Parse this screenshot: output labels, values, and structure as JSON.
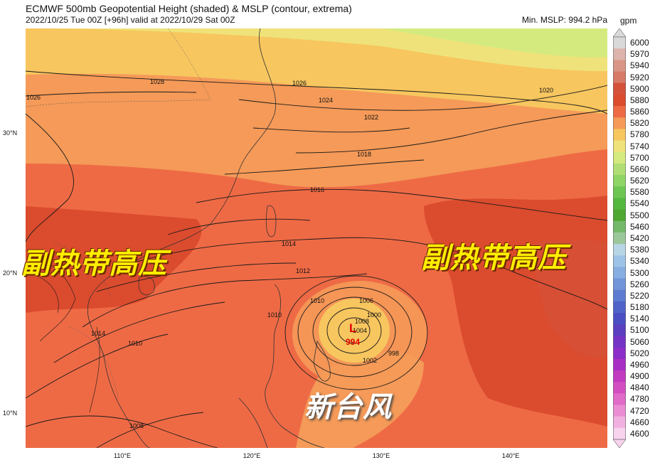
{
  "header": {
    "title": "ECMWF 500mb Geopotential Height (shaded) & MSLP (contour, extrema)",
    "subtitle": "2022/10/25 Tue 00Z [+96h] valid at 2022/10/29 Sat 00Z",
    "min_mslp": "Min. MSLP: 994.2 hPa"
  },
  "axes": {
    "lat_labels": [
      "30°N",
      "20°N",
      "10°N"
    ],
    "lon_labels": [
      "110°E",
      "120°E",
      "130°E",
      "140°E"
    ]
  },
  "colorbar": {
    "unit": "gpm",
    "levels": [
      "6000",
      "5970",
      "5940",
      "5920",
      "5900",
      "5880",
      "5860",
      "5820",
      "5780",
      "5740",
      "5700",
      "5660",
      "5620",
      "5580",
      "5540",
      "5500",
      "5460",
      "5420",
      "5380",
      "5340",
      "5300",
      "5260",
      "5220",
      "5180",
      "5140",
      "5100",
      "5060",
      "5020",
      "4960",
      "4900",
      "4840",
      "4780",
      "4720",
      "4660",
      "4600"
    ],
    "colors": [
      "#d9d9d9",
      "#dcb4ac",
      "#d99686",
      "#d77a68",
      "#d4513a",
      "#db4b2e",
      "#ee6a45",
      "#f59a58",
      "#f7c65f",
      "#efe27a",
      "#d5ea7e",
      "#b0de74",
      "#8ed565",
      "#6dc652",
      "#54b83f",
      "#4ea832",
      "#74b86a",
      "#9cc79b",
      "#b7d5e5",
      "#9dc3e6",
      "#86aee1",
      "#7195d8",
      "#5d7bd1",
      "#4f63c8",
      "#4b4ec3",
      "#5a3fc0",
      "#7333c5",
      "#8b2dc8",
      "#a82fc4",
      "#c13abf",
      "#d34ec0",
      "#e06bc8",
      "#ea8dd3",
      "#f1b1e0",
      "#f7d3ee"
    ]
  },
  "map": {
    "mslp_labels": [
      "1026",
      "1028",
      "1026",
      "1024",
      "1022",
      "1020",
      "1018",
      "1016",
      "1014",
      "1012",
      "1010",
      "1008",
      "1006",
      "1004",
      "1002",
      "1000",
      "998",
      "1010",
      "1014",
      "1010",
      "1008"
    ],
    "low_symbol": "L",
    "low_value": "994"
  },
  "annotations": {
    "left_ridge": "副热带高压",
    "right_ridge": "副热带高压",
    "typhoon": "新台风"
  }
}
